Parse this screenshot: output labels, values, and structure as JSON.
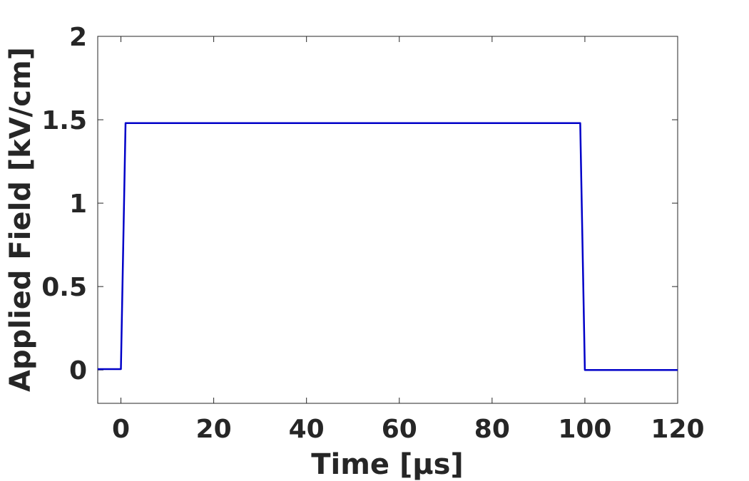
{
  "chart_data": {
    "type": "line",
    "title": "",
    "xlabel": "Time [μs]",
    "ylabel": "Applied Field [kV/cm]",
    "xlim": [
      -5,
      120
    ],
    "ylim": [
      -0.2,
      2
    ],
    "xticks": [
      0,
      20,
      40,
      60,
      80,
      100,
      120
    ],
    "yticks": [
      0,
      0.5,
      1,
      1.5,
      2
    ],
    "xtick_labels": [
      "0",
      "20",
      "40",
      "60",
      "80",
      "100",
      "120"
    ],
    "ytick_labels": [
      "0",
      "0.5",
      "1",
      "1.5",
      "2"
    ],
    "grid": false,
    "series": [
      {
        "color": "#0000c8",
        "x": [
          -5,
          0,
          1,
          99,
          100,
          120
        ],
        "y": [
          0.005,
          0.005,
          1.48,
          1.48,
          0,
          0
        ]
      }
    ]
  }
}
